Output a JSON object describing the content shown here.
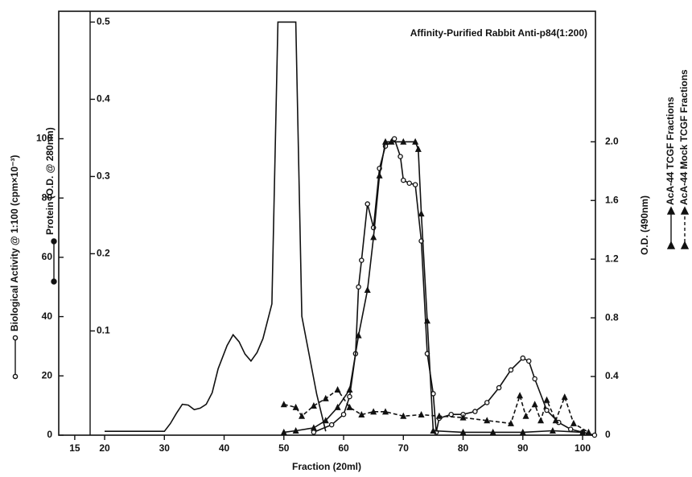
{
  "chart_data": {
    "type": "line",
    "title": "Affinity-Purified Rabbit Anti-p84(1:200)",
    "xlabel": "Fraction (20ml)",
    "y3label": "O.D. (490nm)",
    "xlim": [
      12.32,
      102.15
    ],
    "xticks": [
      15,
      20,
      30,
      40,
      50,
      60,
      70,
      80,
      90,
      100
    ],
    "ylim": [
      0,
      143
    ],
    "yticks": [
      0,
      20,
      40,
      60,
      80,
      100
    ],
    "y2lim": [
      -0.035,
      0.514
    ],
    "y2ticks": [
      0.1,
      0.2,
      0.3,
      0.4,
      0.5
    ],
    "y3lim": [
      0,
      2.89
    ],
    "y3ticks": [
      0,
      0.4,
      0.8,
      1.2,
      1.6,
      {
        "value": 2,
        "label": "2.0"
      }
    ],
    "series": [
      {
        "name": "Biological Activity @ 1:100 (cpm×10⁻³)",
        "color": "#111",
        "marker": "open-circle",
        "dash": false,
        "x": [
          55,
          58,
          60,
          61,
          62,
          62.5,
          63,
          64,
          65,
          66,
          67,
          68.5,
          69.5,
          70,
          71,
          72,
          73,
          74,
          75,
          75.5,
          76,
          78,
          80,
          82,
          84,
          86,
          88,
          90,
          91,
          92,
          94,
          96,
          98,
          100,
          102
        ],
        "values": [
          1,
          3.5,
          7,
          13,
          27.5,
          50,
          59,
          78,
          70,
          90,
          97.5,
          100,
          94,
          86,
          85,
          84.5,
          65.5,
          27.5,
          14,
          1,
          5.7,
          7,
          7,
          8,
          11,
          16,
          22,
          26,
          25,
          19,
          8.4,
          4.3,
          2,
          1,
          0
        ]
      },
      {
        "name": "Protein (O.D. @ 280nm)",
        "color": "#111",
        "marker": "none",
        "dash": false,
        "axis": "y2",
        "x": [
          20,
          30,
          31,
          32,
          33,
          34,
          35,
          36,
          37,
          38,
          39,
          40.5,
          41.5,
          42.5,
          43.5,
          44.5,
          45.5,
          46.5,
          48,
          49,
          52,
          53,
          55.5,
          57
        ],
        "values": [
          -0.03,
          -0.03,
          -0.02,
          -0.007,
          0.005,
          0.004,
          -0.002,
          0,
          0.005,
          0.02,
          0.051,
          0.081,
          0.095,
          0.086,
          0.07,
          0.061,
          0.072,
          0.09,
          0.135,
          0.5,
          0.5,
          0.119,
          0.018,
          -0.03
        ]
      },
      {
        "name": "AcA-44 TCGF Fractions",
        "color": "#111",
        "marker": "triangle",
        "dash": false,
        "axis": "y3",
        "x": [
          50,
          52,
          55,
          57,
          59,
          61,
          62.5,
          64,
          65,
          66,
          67,
          68,
          70,
          72,
          72.5,
          73,
          74,
          75,
          80,
          85,
          90,
          95,
          100
        ],
        "values": [
          0.02,
          0.03,
          0.05,
          0.1,
          0.19,
          0.31,
          0.68,
          0.99,
          1.35,
          1.77,
          2.0,
          2.0,
          2.0,
          2.0,
          1.95,
          1.51,
          0.78,
          0.03,
          0.02,
          0.02,
          0.02,
          0.03,
          0.02
        ]
      },
      {
        "name": "AcA-44 Mock TCGF Fractions",
        "color": "#111",
        "marker": "triangle",
        "dash": true,
        "axis": "y3",
        "x": [
          50,
          52,
          53,
          55,
          57,
          59,
          61,
          63,
          65,
          67,
          70,
          73,
          76,
          80,
          84,
          88,
          89.5,
          90.5,
          92,
          93,
          94,
          95.5,
          97,
          98.5,
          101
        ],
        "values": [
          0.21,
          0.19,
          0.13,
          0.2,
          0.25,
          0.31,
          0.19,
          0.14,
          0.16,
          0.16,
          0.13,
          0.14,
          0.13,
          0.12,
          0.1,
          0.08,
          0.27,
          0.13,
          0.21,
          0.1,
          0.24,
          0.1,
          0.26,
          0.08,
          0.02
        ]
      }
    ]
  }
}
